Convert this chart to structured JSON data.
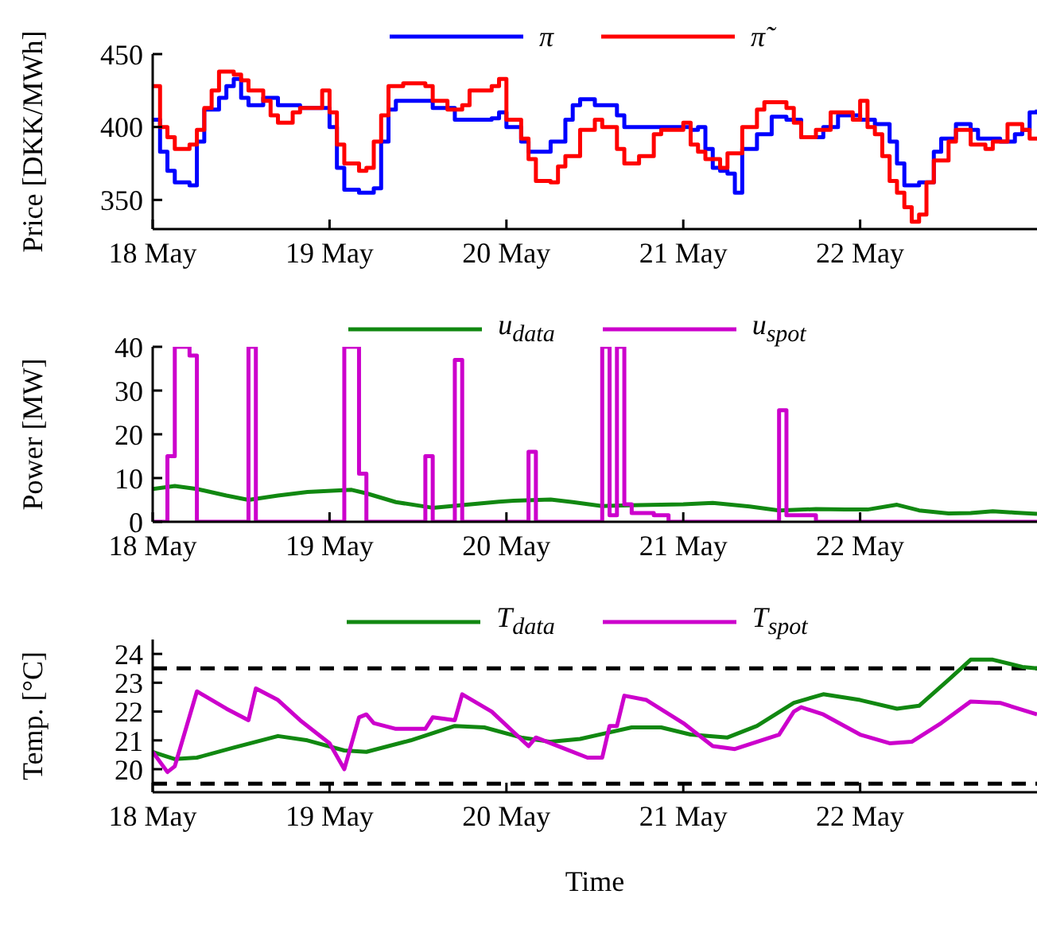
{
  "chart_data": [
    {
      "type": "line",
      "ylabel": "Price [DKK/MWh]",
      "xlim": [
        "--05-18",
        "--05-23"
      ],
      "xticks": [
        {
          "value": "--05-18",
          "label": "18 May"
        },
        {
          "value": "--05-19",
          "label": "19 May"
        },
        {
          "value": "--05-20",
          "label": "20 May"
        },
        {
          "value": "--05-21",
          "label": "21 May"
        },
        {
          "value": "--05-22",
          "label": "22 May"
        }
      ],
      "ylim": [
        330,
        450
      ],
      "yticks": [
        350,
        400,
        450
      ],
      "legend": "top",
      "line_style": "solid",
      "series": [
        {
          "name": "π",
          "type": "step",
          "color": "#0000ff",
          "x": [
            "--05-18T00:00",
            "--05-18T01:00",
            "--05-18T02:00",
            "--05-18T03:00",
            "--05-18T05:00",
            "--05-18T06:00",
            "--05-18T07:00",
            "--05-18T09:00",
            "--05-18T10:00",
            "--05-18T11:00",
            "--05-18T12:00",
            "--05-18T13:00",
            "--05-18T15:00",
            "--05-18T17:00",
            "--05-18T20:00",
            "--05-18T23:00",
            "--05-19T00:00",
            "--05-19T01:00",
            "--05-19T02:00",
            "--05-19T04:00",
            "--05-19T06:00",
            "--05-19T07:00",
            "--05-19T08:00",
            "--05-19T09:00",
            "--05-19T11:00",
            "--05-19T14:00",
            "--05-19T17:00",
            "--05-19T22:00",
            "--05-19T23:00",
            "--05-20T00:00",
            "--05-20T02:00",
            "--05-20T03:00",
            "--05-20T05:00",
            "--05-20T06:00",
            "--05-20T08:00",
            "--05-20T09:00",
            "--05-20T10:00",
            "--05-20T12:00",
            "--05-20T15:00",
            "--05-20T16:00",
            "--05-20T21:00",
            "--05-21T01:00",
            "--05-21T02:00",
            "--05-21T03:00",
            "--05-21T04:00",
            "--05-21T05:00",
            "--05-21T06:00",
            "--05-21T07:00",
            "--05-21T08:00",
            "--05-21T10:00",
            "--05-21T12:00",
            "--05-21T14:00",
            "--05-21T16:00",
            "--05-21T19:00",
            "--05-21T21:00",
            "--05-22T00:00",
            "--05-22T02:00",
            "--05-22T04:00",
            "--05-22T05:00",
            "--05-22T06:00",
            "--05-22T08:00",
            "--05-22T10:00",
            "--05-22T11:00",
            "--05-22T13:00",
            "--05-22T15:00",
            "--05-22T16:00",
            "--05-22T19:00",
            "--05-22T21:00",
            "--05-22T22:00",
            "--05-22T23:00",
            "--05-23T00:00"
          ],
          "values": [
            405,
            383,
            370,
            362,
            360,
            390,
            412,
            420,
            428,
            433,
            420,
            415,
            420,
            415,
            413,
            413,
            400,
            372,
            357,
            355,
            358,
            390,
            412,
            418,
            418,
            413,
            405,
            406,
            410,
            400,
            390,
            383,
            383,
            390,
            405,
            415,
            419,
            415,
            408,
            400,
            400,
            398,
            400,
            385,
            372,
            370,
            368,
            355,
            385,
            395,
            407,
            405,
            393,
            400,
            408,
            405,
            402,
            390,
            375,
            360,
            362,
            383,
            392,
            402,
            398,
            392,
            390,
            395,
            398,
            410,
            412
          ]
        },
        {
          "name": "π̃",
          "type": "step",
          "color": "#ff0000",
          "x": [
            "--05-18T00:00",
            "--05-18T01:00",
            "--05-18T02:00",
            "--05-18T03:00",
            "--05-18T05:00",
            "--05-18T06:00",
            "--05-18T07:00",
            "--05-18T08:00",
            "--05-18T09:00",
            "--05-18T11:00",
            "--05-18T12:00",
            "--05-18T13:00",
            "--05-18T15:00",
            "--05-18T16:00",
            "--05-18T17:00",
            "--05-18T19:00",
            "--05-18T20:00",
            "--05-18T22:00",
            "--05-18T23:00",
            "--05-19T00:00",
            "--05-19T01:00",
            "--05-19T02:00",
            "--05-19T04:00",
            "--05-19T05:00",
            "--05-19T06:00",
            "--05-19T07:00",
            "--05-19T08:00",
            "--05-19T10:00",
            "--05-19T13:00",
            "--05-19T14:00",
            "--05-19T16:00",
            "--05-19T18:00",
            "--05-19T19:00",
            "--05-19T22:00",
            "--05-19T23:00",
            "--05-20T00:00",
            "--05-20T02:00",
            "--05-20T03:00",
            "--05-20T04:00",
            "--05-20T06:00",
            "--05-20T07:00",
            "--05-20T08:00",
            "--05-20T10:00",
            "--05-20T12:00",
            "--05-20T13:00",
            "--05-20T15:00",
            "--05-20T16:00",
            "--05-20T18:00",
            "--05-20T20:00",
            "--05-20T21:00",
            "--05-21T00:00",
            "--05-21T01:00",
            "--05-21T02:00",
            "--05-21T03:00",
            "--05-21T05:00",
            "--05-21T06:00",
            "--05-21T08:00",
            "--05-21T10:00",
            "--05-21T11:00",
            "--05-21T14:00",
            "--05-21T15:00",
            "--05-21T16:00",
            "--05-21T18:00",
            "--05-21T20:00",
            "--05-21T23:00",
            "--05-22T00:00",
            "--05-22T01:00",
            "--05-22T02:00",
            "--05-22T03:00",
            "--05-22T04:00",
            "--05-22T05:00",
            "--05-22T06:00",
            "--05-22T07:00",
            "--05-22T08:00",
            "--05-22T09:00",
            "--05-22T10:00",
            "--05-22T12:00",
            "--05-22T13:00",
            "--05-22T15:00",
            "--05-22T17:00",
            "--05-22T18:00",
            "--05-22T20:00",
            "--05-22T22:00",
            "--05-22T23:00",
            "--05-23T00:00"
          ],
          "values": [
            428,
            400,
            393,
            385,
            388,
            398,
            413,
            425,
            438,
            436,
            432,
            425,
            418,
            408,
            403,
            410,
            413,
            413,
            425,
            410,
            388,
            375,
            370,
            372,
            390,
            408,
            428,
            430,
            428,
            418,
            412,
            415,
            425,
            428,
            433,
            405,
            392,
            378,
            363,
            362,
            373,
            380,
            398,
            405,
            400,
            385,
            375,
            380,
            395,
            398,
            403,
            388,
            383,
            378,
            372,
            382,
            400,
            412,
            417,
            413,
            403,
            393,
            398,
            410,
            405,
            418,
            400,
            395,
            380,
            363,
            355,
            345,
            335,
            340,
            362,
            377,
            390,
            398,
            388,
            385,
            390,
            402,
            398,
            392,
            392
          ]
        }
      ]
    },
    {
      "type": "line",
      "ylabel": "Power [MW]",
      "xlim": [
        "--05-18",
        "--05-23"
      ],
      "xticks": [
        {
          "value": "--05-18",
          "label": "18 May"
        },
        {
          "value": "--05-19",
          "label": "19 May"
        },
        {
          "value": "--05-20",
          "label": "20 May"
        },
        {
          "value": "--05-21",
          "label": "21 May"
        },
        {
          "value": "--05-22",
          "label": "22 May"
        }
      ],
      "ylim": [
        0,
        40
      ],
      "yticks": [
        0,
        10,
        20,
        30,
        40
      ],
      "legend": "top",
      "line_style": "solid",
      "series": [
        {
          "name": "u$_{data}$",
          "type": "line",
          "color": "#118811",
          "x": [
            "--05-18T00:00",
            "--05-18T03:00",
            "--05-18T06:00",
            "--05-18T10:00",
            "--05-18T13:00",
            "--05-18T17:00",
            "--05-18T21:00",
            "--05-19T03:00",
            "--05-19T05:00",
            "--05-19T09:00",
            "--05-19T14:00",
            "--05-19T18:00",
            "--05-19T23:00",
            "--05-20T01:00",
            "--05-20T06:00",
            "--05-20T09:00",
            "--05-20T13:00",
            "--05-20T18:00",
            "--05-21T00:00",
            "--05-21T04:00",
            "--05-21T09:00",
            "--05-21T13:00",
            "--05-21T18:00",
            "--05-21T22:00",
            "--05-22T01:00",
            "--05-22T05:00",
            "--05-22T08:00",
            "--05-22T12:00",
            "--05-22T15:00",
            "--05-22T18:00",
            "--05-22T21:00",
            "--05-23T00:00"
          ],
          "values": [
            7.5,
            8.2,
            7.5,
            6,
            5,
            6,
            6.8,
            7.3,
            6.5,
            4.5,
            3.2,
            3.8,
            4.6,
            4.8,
            5.1,
            4.5,
            3.6,
            3.8,
            4.0,
            4.3,
            3.5,
            2.6,
            2.9,
            2.8,
            2.8,
            3.9,
            2.6,
            1.9,
            2.0,
            2.4,
            2.1,
            1.8
          ]
        },
        {
          "name": "u$_{spot}$",
          "type": "step",
          "color": "#cc00cc",
          "x": [
            "--05-18T00:00",
            "--05-18T02:00",
            "--05-18T03:00",
            "--05-18T05:00",
            "--05-18T06:00",
            "--05-18T13:00",
            "--05-18T14:00",
            "--05-19T02:00",
            "--05-19T04:00",
            "--05-19T05:00",
            "--05-19T13:00",
            "--05-19T14:00",
            "--05-19T17:00",
            "--05-19T18:00",
            "--05-20T03:00",
            "--05-20T04:00",
            "--05-20T13:00",
            "--05-20T14:00",
            "--05-20T15:00",
            "--05-20T16:00",
            "--05-20T17:00",
            "--05-20T20:00",
            "--05-20T22:00",
            "--05-21T13:00",
            "--05-21T14:00",
            "--05-21T18:00",
            "--05-23T00:00"
          ],
          "values": [
            0,
            15,
            40,
            38,
            0,
            40,
            0,
            40,
            11,
            0,
            15,
            0,
            37,
            0,
            16,
            0,
            40,
            1.5,
            40,
            4,
            2,
            1.5,
            0,
            25.5,
            1.5,
            0,
            0
          ]
        }
      ]
    },
    {
      "type": "line",
      "ylabel": "Temp. [°C]",
      "xlabel": "Time",
      "xlim": [
        "--05-18",
        "--05-23"
      ],
      "xticks": [
        {
          "value": "--05-18",
          "label": "18 May"
        },
        {
          "value": "--05-19",
          "label": "19 May"
        },
        {
          "value": "--05-20",
          "label": "20 May"
        },
        {
          "value": "--05-21",
          "label": "21 May"
        },
        {
          "value": "--05-22",
          "label": "22 May"
        }
      ],
      "ylim": [
        19.2,
        24.5
      ],
      "yticks": [
        20,
        21,
        22,
        23,
        24
      ],
      "legend": "top",
      "line_style": "solid",
      "ref_lines": [
        {
          "axis": "y",
          "value": 23.5,
          "color": "#000000",
          "line_style": "dashed"
        },
        {
          "axis": "y",
          "value": 19.5,
          "color": "#000000",
          "line_style": "dashed"
        }
      ],
      "series": [
        {
          "name": "T$_{data}$",
          "type": "line",
          "color": "#118811",
          "x": [
            "--05-18T00:00",
            "--05-18T03:00",
            "--05-18T06:00",
            "--05-18T11:00",
            "--05-18T17:00",
            "--05-18T21:00",
            "--05-19T02:00",
            "--05-19T05:00",
            "--05-19T11:00",
            "--05-19T17:00",
            "--05-19T21:00",
            "--05-20T02:00",
            "--05-20T06:00",
            "--05-20T10:00",
            "--05-20T17:00",
            "--05-20T21:00",
            "--05-21T01:00",
            "--05-21T06:00",
            "--05-21T10:00",
            "--05-21T15:00",
            "--05-21T19:00",
            "--05-22T00:00",
            "--05-22T05:00",
            "--05-22T08:00",
            "--05-22T12:00",
            "--05-22T15:00",
            "--05-22T18:00",
            "--05-22T22:00",
            "--05-23T00:00"
          ],
          "values": [
            20.6,
            20.35,
            20.4,
            20.75,
            21.15,
            21.0,
            20.65,
            20.6,
            21.0,
            21.5,
            21.45,
            21.1,
            20.95,
            21.05,
            21.45,
            21.45,
            21.2,
            21.1,
            21.5,
            22.3,
            22.6,
            22.4,
            22.1,
            22.2,
            23.1,
            23.8,
            23.8,
            23.55,
            23.5
          ]
        },
        {
          "name": "T$_{spot}$",
          "type": "line",
          "color": "#cc00cc",
          "x": [
            "--05-18T00:00",
            "--05-18T02:00",
            "--05-18T03:00",
            "--05-18T06:00",
            "--05-18T10:00",
            "--05-18T13:00",
            "--05-18T14:00",
            "--05-18T17:00",
            "--05-18T20:00",
            "--05-19T00:00",
            "--05-19T02:00",
            "--05-19T04:00",
            "--05-19T05:00",
            "--05-19T06:00",
            "--05-19T09:00",
            "--05-19T13:00",
            "--05-19T14:00",
            "--05-19T17:00",
            "--05-19T18:00",
            "--05-19T22:00",
            "--05-20T03:00",
            "--05-20T04:00",
            "--05-20T08:00",
            "--05-20T11:00",
            "--05-20T13:00",
            "--05-20T14:00",
            "--05-20T15:00",
            "--05-20T16:00",
            "--05-20T19:00",
            "--05-21T00:00",
            "--05-21T04:00",
            "--05-21T07:00",
            "--05-21T13:00",
            "--05-21T15:00",
            "--05-21T16:00",
            "--05-21T19:00",
            "--05-22T00:00",
            "--05-22T04:00",
            "--05-22T07:00",
            "--05-22T11:00",
            "--05-22T15:00",
            "--05-22T19:00",
            "--05-23T00:00"
          ],
          "values": [
            20.6,
            19.9,
            20.1,
            22.7,
            22.1,
            21.7,
            22.8,
            22.4,
            21.7,
            20.9,
            20.0,
            21.8,
            21.9,
            21.6,
            21.4,
            21.4,
            21.8,
            21.7,
            22.6,
            22.0,
            20.8,
            21.1,
            20.7,
            20.4,
            20.4,
            21.5,
            21.5,
            22.55,
            22.4,
            21.6,
            20.8,
            20.7,
            21.2,
            22.0,
            22.15,
            21.9,
            21.2,
            20.9,
            20.95,
            21.6,
            22.35,
            22.3,
            21.9
          ]
        }
      ]
    }
  ]
}
